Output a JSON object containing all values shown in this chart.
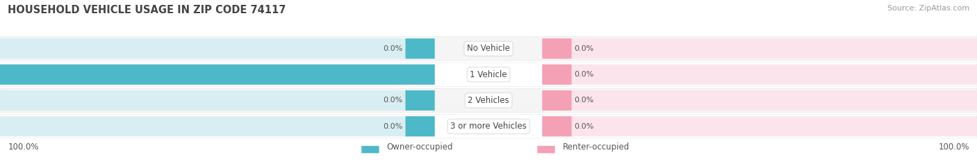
{
  "title": "HOUSEHOLD VEHICLE USAGE IN ZIP CODE 74117",
  "source": "Source: ZipAtlas.com",
  "categories": [
    "No Vehicle",
    "1 Vehicle",
    "2 Vehicles",
    "3 or more Vehicles"
  ],
  "owner_values": [
    0.0,
    100.0,
    0.0,
    0.0
  ],
  "renter_values": [
    0.0,
    0.0,
    0.0,
    0.0
  ],
  "owner_color": "#4db8c8",
  "renter_color": "#f4a0b5",
  "bar_bg_left_color": "#d8eef2",
  "bar_bg_right_color": "#fce4ec",
  "row_bg_even": "#f5f5f5",
  "row_bg_odd": "#ffffff",
  "title_fontsize": 10.5,
  "source_fontsize": 8,
  "label_fontsize": 8,
  "category_fontsize": 8.5,
  "legend_fontsize": 8.5,
  "axis_label_left": "100.0%",
  "axis_label_right": "100.0%",
  "max_value": 100.0,
  "stub_size": 6.0,
  "figsize": [
    14.06,
    2.33
  ],
  "dpi": 100
}
